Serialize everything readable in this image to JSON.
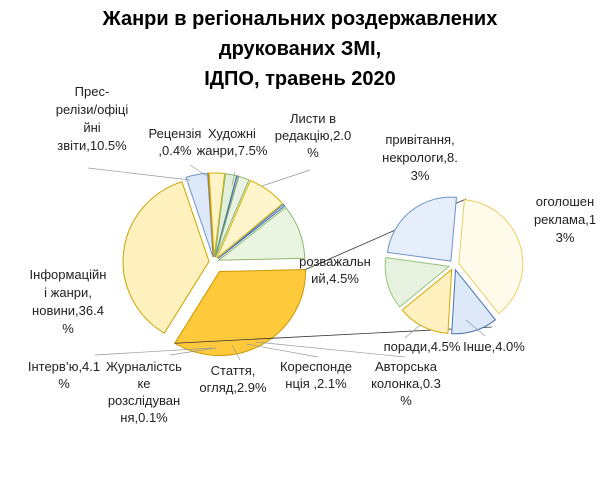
{
  "chart_data": {
    "type": "pie",
    "variant": "pie-of-pie",
    "title": "Жанри в регіональних роздержавлених\nдрукованих ЗМІ,\nІДПО, травень 2020",
    "unit": "%",
    "slices": [
      {
        "name": "Інформаційні жанри, новини",
        "label": [
          "Інформаційн",
          "і жанри,",
          "новини,36.4",
          "%"
        ],
        "value": 36.4,
        "color": "#fff1bd",
        "stroke": "#c9a400",
        "group": "main"
      },
      {
        "name": "Інтерв’ю",
        "label": [
          "Інтерв’ю,4.1",
          "%"
        ],
        "value": 4.1,
        "color": "#dde8f8",
        "stroke": "#6f93c7",
        "group": "main"
      },
      {
        "name": "Журналістське розслідування",
        "label": [
          "Журналістсь",
          "ке",
          "розслідуван",
          "ня,0.1%"
        ],
        "value": 0.1,
        "color": "#f4d9a0",
        "stroke": "#b8860b",
        "group": "main"
      },
      {
        "name": "Стаття, огляд",
        "label": [
          "Стаття,",
          "огляд,2.9%"
        ],
        "value": 2.9,
        "color": "#fff3c7",
        "stroke": "#d4b000",
        "group": "main"
      },
      {
        "name": "Кореспонденція",
        "label": [
          "Кореспонде",
          "нція ,2.1%"
        ],
        "value": 2.1,
        "color": "#e2efd9",
        "stroke": "#8fb86d",
        "group": "main"
      },
      {
        "name": "Авторська колонка",
        "label": [
          "Авторська",
          "колонка,0.3",
          "%"
        ],
        "value": 0.3,
        "color": "#c9d9ee",
        "stroke": "#4a73b0",
        "group": "main"
      },
      {
        "name": "Інше",
        "label": [
          "Інше,4.0%"
        ],
        "value": 4.0,
        "color": "#dde8f8",
        "stroke": "#4a73b0",
        "group": "secondary"
      },
      {
        "name": "поради",
        "label": [
          "поради,4.5%"
        ],
        "value": 4.5,
        "color": "#fff0c0",
        "stroke": "#d4a800",
        "group": "secondary"
      },
      {
        "name": "розважальний",
        "label": [
          "розважальн",
          "ий,4.5%"
        ],
        "value": 4.5,
        "color": "#e6f2df",
        "stroke": "#9bc47e",
        "group": "secondary"
      },
      {
        "name": "привітання, некрологи",
        "label": [
          "привітання,",
          "некрологи,8.",
          "3%"
        ],
        "value": 8.3,
        "color": "#e6eefb",
        "stroke": "#6f93c7",
        "group": "secondary"
      },
      {
        "name": "оголошення, реклама",
        "label": [
          "оголошен",
          "реклама,1",
          "3%"
        ],
        "value": 13.0,
        "color": "#fffbea",
        "stroke": "#e8cf66",
        "group": "secondary"
      },
      {
        "name": "Листи в редакцію",
        "label": [
          "Листи в",
          "редакцію,2.0",
          "%"
        ],
        "value": 2.0,
        "color": "#eaf3e3",
        "stroke": "#8fb86d",
        "group": "main"
      },
      {
        "name": "Художні жанри",
        "label": [
          "Художні",
          "жанри,7.5%"
        ],
        "value": 7.5,
        "color": "#fff5cc",
        "stroke": "#d4b000",
        "group": "main"
      },
      {
        "name": "Рецензія",
        "label": [
          "Рецензія",
          ",0.4%"
        ],
        "value": 0.4,
        "color": "#c9d9ee",
        "stroke": "#4a73b0",
        "group": "main"
      },
      {
        "name": "Прес-релізи/офіційні звіти",
        "label": [
          "Прес-",
          "релізи/офіці",
          "йні",
          "звіти,10.5%"
        ],
        "value": 10.5,
        "color": "#eaf5e1",
        "stroke": "#8fb86d",
        "group": "main"
      }
    ]
  }
}
